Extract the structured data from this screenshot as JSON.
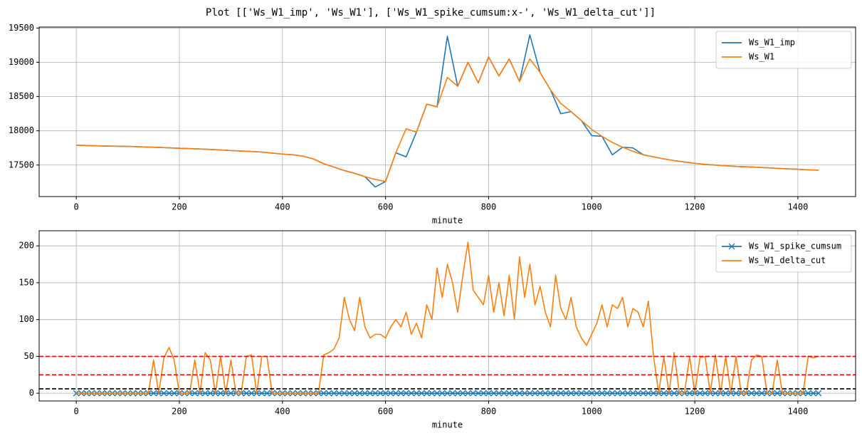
{
  "title": "Plot [['Ws_W1_imp', 'Ws_W1'], ['Ws_W1_spike_cumsum:x-', 'Ws_W1_delta_cut']]",
  "chart_data": [
    {
      "type": "line",
      "xlabel": "minute",
      "grid": true,
      "legend": "upper right",
      "xlim": [
        -72,
        1512
      ],
      "ylim": [
        17040,
        19515
      ],
      "xticks": [
        0,
        200,
        400,
        600,
        800,
        1000,
        1200,
        1400
      ],
      "yticks": [
        17500,
        18000,
        18500,
        19000,
        19500
      ],
      "x": [
        0,
        20,
        40,
        60,
        80,
        100,
        120,
        140,
        160,
        180,
        200,
        220,
        240,
        260,
        280,
        300,
        320,
        340,
        360,
        380,
        400,
        420,
        440,
        460,
        480,
        500,
        520,
        540,
        560,
        580,
        600,
        620,
        640,
        660,
        680,
        700,
        720,
        740,
        760,
        780,
        800,
        820,
        840,
        860,
        880,
        900,
        920,
        940,
        960,
        980,
        1000,
        1020,
        1040,
        1060,
        1080,
        1100,
        1120,
        1140,
        1160,
        1180,
        1200,
        1220,
        1240,
        1260,
        1280,
        1300,
        1320,
        1340,
        1360,
        1380,
        1400,
        1420,
        1440
      ],
      "series": [
        {
          "name": "Ws_W1_imp",
          "color": "#1f77b4",
          "values": [
            17790,
            17785,
            17782,
            17778,
            17775,
            17772,
            17768,
            17762,
            17758,
            17752,
            17745,
            17740,
            17735,
            17728,
            17720,
            17712,
            17705,
            17698,
            17690,
            17675,
            17660,
            17650,
            17630,
            17590,
            17520,
            17470,
            17420,
            17380,
            17330,
            17180,
            17260,
            17680,
            17620,
            17980,
            18390,
            18350,
            19380,
            18650,
            19000,
            18700,
            19080,
            18800,
            19050,
            18720,
            19400,
            18850,
            18600,
            18250,
            18280,
            18150,
            17930,
            17920,
            17650,
            17760,
            17750,
            17650,
            17620,
            17590,
            17565,
            17545,
            17525,
            17510,
            17500,
            17490,
            17480,
            17475,
            17468,
            17460,
            17452,
            17445,
            17438,
            17430,
            17425
          ]
        },
        {
          "name": "Ws_W1",
          "color": "#ff7f0e",
          "values": [
            17790,
            17785,
            17782,
            17778,
            17775,
            17772,
            17768,
            17762,
            17758,
            17752,
            17745,
            17740,
            17735,
            17728,
            17720,
            17712,
            17705,
            17698,
            17690,
            17675,
            17660,
            17650,
            17630,
            17590,
            17520,
            17470,
            17420,
            17380,
            17330,
            17290,
            17260,
            17680,
            18030,
            17980,
            18390,
            18350,
            18780,
            18650,
            19000,
            18700,
            19080,
            18800,
            19050,
            18720,
            19050,
            18850,
            18600,
            18400,
            18280,
            18150,
            18020,
            17920,
            17830,
            17760,
            17700,
            17650,
            17620,
            17590,
            17565,
            17545,
            17525,
            17510,
            17500,
            17490,
            17480,
            17475,
            17468,
            17460,
            17452,
            17445,
            17438,
            17430,
            17425
          ]
        }
      ]
    },
    {
      "type": "line",
      "xlabel": "minute",
      "grid": true,
      "legend": "upper right",
      "xlim": [
        -72,
        1512
      ],
      "ylim": [
        -10.5,
        220.5
      ],
      "xticks": [
        0,
        200,
        400,
        600,
        800,
        1000,
        1200,
        1400
      ],
      "yticks": [
        0,
        50,
        100,
        150,
        200
      ],
      "hlines": [
        {
          "value": 50,
          "color": "#ff0000"
        },
        {
          "value": 25,
          "color": "#ff0000"
        },
        {
          "value": 6,
          "color": "#000000"
        }
      ],
      "x": [
        0,
        10,
        20,
        30,
        40,
        50,
        60,
        70,
        80,
        90,
        100,
        110,
        120,
        130,
        140,
        150,
        160,
        170,
        180,
        190,
        200,
        210,
        220,
        230,
        240,
        250,
        260,
        270,
        280,
        290,
        300,
        310,
        320,
        330,
        340,
        350,
        360,
        370,
        380,
        390,
        400,
        410,
        420,
        430,
        440,
        450,
        460,
        470,
        480,
        490,
        500,
        510,
        520,
        530,
        540,
        550,
        560,
        570,
        580,
        590,
        600,
        610,
        620,
        630,
        640,
        650,
        660,
        670,
        680,
        690,
        700,
        710,
        720,
        730,
        740,
        750,
        760,
        770,
        780,
        790,
        800,
        810,
        820,
        830,
        840,
        850,
        860,
        870,
        880,
        890,
        900,
        910,
        920,
        930,
        940,
        950,
        960,
        970,
        980,
        990,
        1000,
        1010,
        1020,
        1030,
        1040,
        1050,
        1060,
        1070,
        1080,
        1090,
        1100,
        1110,
        1120,
        1130,
        1140,
        1150,
        1160,
        1170,
        1180,
        1190,
        1200,
        1210,
        1220,
        1230,
        1240,
        1250,
        1260,
        1270,
        1280,
        1290,
        1300,
        1310,
        1320,
        1330,
        1340,
        1350,
        1360,
        1370,
        1380,
        1390,
        1400,
        1410,
        1420,
        1430,
        1440
      ],
      "series": [
        {
          "name": "Ws_W1_spike_cumsum",
          "color": "#1f77b4",
          "marker": "x",
          "values": [
            0,
            0,
            0,
            0,
            0,
            0,
            0,
            0,
            0,
            0,
            0,
            0,
            0,
            0,
            0,
            0,
            0,
            0,
            0,
            0,
            0,
            0,
            0,
            0,
            0,
            0,
            0,
            0,
            0,
            0,
            0,
            0,
            0,
            0,
            0,
            0,
            0,
            0,
            0,
            0,
            0,
            0,
            0,
            0,
            0,
            0,
            0,
            0,
            0,
            0,
            0,
            0,
            0,
            0,
            0,
            0,
            0,
            0,
            0,
            0,
            0,
            0,
            0,
            0,
            0,
            0,
            0,
            0,
            0,
            0,
            0,
            0,
            0,
            0,
            0,
            0,
            0,
            0,
            0,
            0,
            0,
            0,
            0,
            0,
            0,
            0,
            0,
            0,
            0,
            0,
            0,
            0,
            0,
            0,
            0,
            0,
            0,
            0,
            0,
            0,
            0,
            0,
            0,
            0,
            0,
            0,
            0,
            0,
            0,
            0,
            0,
            0,
            0,
            0,
            0,
            0,
            0,
            0,
            0,
            0,
            0,
            0,
            0,
            0,
            0,
            0,
            0,
            0,
            0,
            0,
            0,
            0,
            0,
            0,
            0,
            0,
            0,
            0,
            0,
            0,
            0,
            0,
            0,
            0,
            0
          ]
        },
        {
          "name": "Ws_W1_delta_cut",
          "color": "#ff7f0e",
          "values": [
            0,
            0,
            0,
            0,
            0,
            0,
            0,
            0,
            0,
            0,
            0,
            0,
            0,
            0,
            0,
            45,
            0,
            48,
            62,
            45,
            0,
            0,
            0,
            45,
            0,
            55,
            45,
            0,
            50,
            0,
            45,
            0,
            0,
            50,
            52,
            0,
            50,
            50,
            0,
            0,
            0,
            0,
            0,
            0,
            0,
            0,
            0,
            0,
            52,
            55,
            60,
            75,
            130,
            100,
            85,
            130,
            90,
            75,
            80,
            80,
            75,
            90,
            100,
            90,
            110,
            80,
            95,
            75,
            120,
            100,
            170,
            130,
            175,
            150,
            110,
            160,
            205,
            140,
            130,
            120,
            160,
            110,
            150,
            105,
            160,
            100,
            185,
            130,
            175,
            120,
            145,
            110,
            90,
            160,
            115,
            100,
            130,
            90,
            75,
            65,
            80,
            95,
            120,
            90,
            120,
            115,
            130,
            90,
            115,
            110,
            90,
            125,
            50,
            0,
            50,
            0,
            55,
            0,
            0,
            50,
            0,
            48,
            50,
            0,
            52,
            0,
            50,
            0,
            50,
            0,
            0,
            45,
            52,
            50,
            0,
            0,
            45,
            0,
            0,
            0,
            0,
            0,
            50,
            48,
            50
          ]
        }
      ]
    }
  ]
}
